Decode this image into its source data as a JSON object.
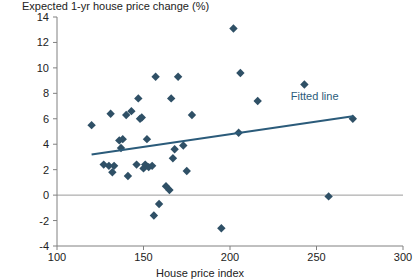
{
  "chart_data": {
    "type": "scatter",
    "ylabel": "Expected 1-yr house price change (%)",
    "xlabel": "House price index",
    "xlim": [
      100,
      300
    ],
    "xticks": [
      100,
      150,
      200,
      250,
      300
    ],
    "ylim": [
      -4,
      14
    ],
    "yticks": [
      -4,
      -2,
      0,
      2,
      4,
      6,
      8,
      10,
      12,
      14
    ],
    "grid": false,
    "hlines": [
      0
    ],
    "series": [
      {
        "type": "scatter",
        "marker": "diamond",
        "color": "#2f5066",
        "x": [
          120,
          127,
          130,
          131,
          132,
          133,
          136,
          137,
          138,
          140,
          141,
          143,
          146,
          147,
          148,
          149,
          150,
          151,
          152,
          153,
          155,
          156,
          157,
          159,
          163,
          165,
          166,
          167,
          168,
          170,
          173,
          175,
          178,
          195,
          202,
          205,
          206,
          216,
          243,
          257,
          271
        ],
        "values": [
          5.5,
          2.4,
          2.3,
          6.4,
          1.8,
          2.3,
          4.3,
          3.7,
          4.4,
          6.3,
          1.5,
          6.6,
          2.4,
          7.6,
          6.0,
          6.1,
          2.1,
          2.4,
          4.4,
          2.2,
          2.3,
          -1.6,
          9.3,
          -0.7,
          0.7,
          0.4,
          7.6,
          2.9,
          3.6,
          9.3,
          3.9,
          1.9,
          6.3,
          -2.6,
          13.1,
          4.9,
          9.6,
          7.4,
          8.7,
          -0.1,
          6.0
        ]
      },
      {
        "name": "Fitted line",
        "type": "line",
        "color": "#2b5b7a",
        "x": [
          120,
          271
        ],
        "values": [
          3.2,
          6.2
        ]
      }
    ]
  }
}
